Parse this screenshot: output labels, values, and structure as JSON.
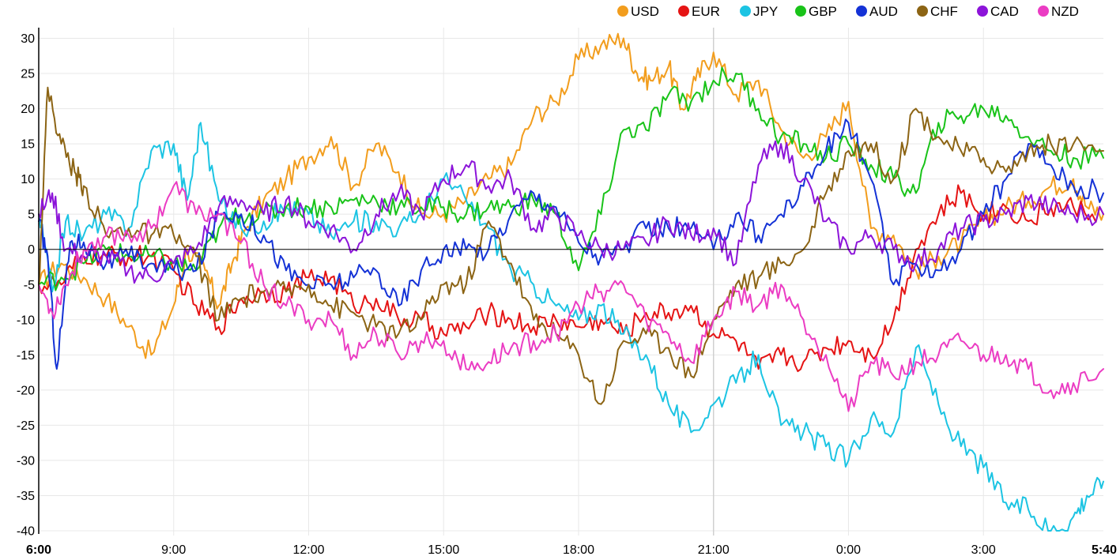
{
  "chart_data": {
    "type": "line",
    "title": "",
    "xlabel": "",
    "ylabel": "",
    "ylim": [
      -40,
      32
    ],
    "xlim_hours": [
      0,
      23.667
    ],
    "yticks": [
      30,
      25,
      20,
      15,
      10,
      5,
      0,
      -5,
      -10,
      -15,
      -20,
      -25,
      -30,
      -35,
      -40
    ],
    "xticks": [
      {
        "label": "6:00",
        "bold": true
      },
      {
        "label": "9:00",
        "bold": false
      },
      {
        "label": "12:00",
        "bold": false
      },
      {
        "label": "15:00",
        "bold": false
      },
      {
        "label": "18:00",
        "bold": false
      },
      {
        "label": "21:00",
        "bold": false
      },
      {
        "label": "0:00",
        "bold": false
      },
      {
        "label": "3:00",
        "bold": false
      },
      {
        "label": "5:40",
        "bold": true
      }
    ],
    "grid": true,
    "legend_position": "top-right",
    "series": [
      {
        "name": "USD",
        "color": "#f29d1d",
        "x": [
          0,
          0.5,
          1,
          1.5,
          2,
          2.5,
          3,
          3.3,
          3.7,
          4,
          4.3,
          4.6,
          5,
          5.5,
          6,
          6.5,
          7,
          7.5,
          8,
          8.5,
          9,
          9.5,
          10,
          10.5,
          11,
          11.5,
          12,
          12.5,
          13,
          13.3,
          13.6,
          14,
          14.3,
          14.6,
          15,
          15.5,
          16,
          16.5,
          17,
          17.5,
          18,
          18.5,
          19,
          19.5,
          20,
          20.5,
          21,
          21.5,
          22,
          22.5,
          23,
          23.3,
          23.667
        ],
        "y": [
          -5,
          -2,
          -4,
          -7,
          -11,
          -15,
          -8,
          0,
          -3,
          -8,
          -2,
          3,
          7,
          10,
          13,
          16,
          9,
          15,
          11,
          5,
          5,
          7,
          10,
          12,
          19,
          21,
          27,
          29,
          30,
          25,
          24,
          26,
          20,
          24,
          28,
          22,
          24,
          17,
          13,
          16,
          21,
          3,
          2,
          -3,
          -1,
          1,
          4,
          6,
          7,
          9,
          10,
          6,
          5
        ]
      },
      {
        "name": "EUR",
        "color": "#e51414",
        "x": [
          0,
          0.5,
          1,
          1.5,
          2,
          2.5,
          3,
          3.5,
          4,
          4.5,
          5,
          5.5,
          6,
          6.5,
          7,
          7.5,
          8,
          8.5,
          9,
          9.5,
          10,
          10.5,
          11,
          11.5,
          12,
          12.5,
          13,
          13.5,
          14,
          14.5,
          15,
          15.5,
          16,
          16.5,
          17,
          17.5,
          18,
          18.5,
          19,
          19.5,
          20,
          20.5,
          21,
          21.5,
          22,
          22.5,
          23,
          23.667
        ],
        "y": [
          -5,
          -5,
          -1,
          -1,
          -1,
          -1,
          -3,
          -8,
          -11,
          -7,
          -6,
          -6,
          -4,
          -4,
          -8,
          -7,
          -10,
          -10,
          -12,
          -11,
          -9,
          -10,
          -11,
          -10,
          -11,
          -10,
          -12,
          -9,
          -9,
          -8,
          -12,
          -13,
          -17,
          -15,
          -16,
          -14,
          -13,
          -15,
          -10,
          0,
          5,
          8,
          5,
          6,
          4,
          6,
          6,
          5
        ]
      },
      {
        "name": "JPY",
        "color": "#1cc4e3",
        "x": [
          0,
          0.3,
          0.6,
          1,
          1.5,
          2,
          2.5,
          3,
          3.3,
          3.6,
          4,
          4.5,
          5,
          5.5,
          6,
          6.5,
          7,
          7.5,
          8,
          8.5,
          9,
          9.5,
          10,
          10.5,
          11,
          11.5,
          12,
          12.5,
          13,
          13.5,
          14,
          14.5,
          15,
          15.5,
          16,
          16.5,
          17,
          17.5,
          18,
          18.5,
          19,
          19.5,
          20,
          20.5,
          21,
          21.5,
          22,
          22.5,
          23,
          23.3,
          23.667
        ],
        "y": [
          5,
          -6,
          4,
          2,
          5,
          3,
          14,
          15,
          7,
          18,
          7,
          3,
          4,
          6,
          5,
          2,
          4,
          4,
          3,
          5,
          10,
          7,
          3,
          -3,
          -5,
          -8,
          -10,
          -8,
          -12,
          -15,
          -22,
          -26,
          -22,
          -19,
          -15,
          -25,
          -26,
          -28,
          -30,
          -24,
          -26,
          -14,
          -22,
          -28,
          -31,
          -36,
          -37,
          -40,
          -38,
          -35,
          -33
        ]
      },
      {
        "name": "GBP",
        "color": "#19c319",
        "x": [
          0,
          0.5,
          1,
          1.5,
          2,
          2.5,
          3,
          3.5,
          4,
          4.5,
          5,
          5.5,
          6,
          6.5,
          7,
          7.5,
          8,
          8.5,
          9,
          9.5,
          10,
          10.5,
          11,
          11.5,
          12,
          12.5,
          13,
          13.5,
          14,
          14.5,
          15,
          15.5,
          16,
          16.5,
          17,
          17.5,
          18,
          18.5,
          19,
          19.5,
          20,
          20.5,
          21,
          21.5,
          22,
          22.5,
          23,
          23.667
        ],
        "y": [
          -5,
          -4,
          -2,
          0,
          -1,
          -1,
          -2,
          -3,
          3,
          5,
          5,
          6,
          6,
          6,
          7,
          7,
          6,
          6,
          6,
          5,
          6,
          6,
          7,
          5,
          -3,
          5,
          17,
          17,
          22,
          21,
          24,
          25,
          20,
          16,
          15,
          13,
          15,
          12,
          10,
          8,
          18,
          19,
          20,
          19,
          16,
          14,
          13,
          13
        ]
      },
      {
        "name": "AUD",
        "color": "#1432d6",
        "x": [
          0,
          0.2,
          0.4,
          0.7,
          1,
          1.5,
          2,
          2.5,
          3,
          3.5,
          4,
          4.5,
          5,
          5.5,
          6,
          6.5,
          7,
          7.5,
          8,
          8.5,
          9,
          9.5,
          10,
          10.5,
          11,
          11.5,
          12,
          12.5,
          13,
          13.5,
          14,
          14.5,
          15,
          15.5,
          16,
          16.5,
          17,
          17.5,
          18,
          18.5,
          19,
          19.5,
          20,
          20.5,
          21,
          21.5,
          22,
          22.5,
          23,
          23.667
        ],
        "y": [
          4,
          -1,
          -17,
          1,
          1,
          -2,
          -1,
          -2,
          -3,
          -3,
          5,
          5,
          2,
          -3,
          -5,
          -5,
          -4,
          -3,
          -8,
          -3,
          0,
          0,
          0,
          5,
          8,
          6,
          1,
          -1,
          0,
          3,
          3,
          3,
          0,
          5,
          2,
          5,
          9,
          14,
          18,
          10,
          -5,
          -2,
          -3,
          0,
          5,
          10,
          15,
          12,
          9,
          8
        ]
      },
      {
        "name": "CHF",
        "color": "#8c6414",
        "x": [
          0,
          0.2,
          0.5,
          0.8,
          1,
          1.5,
          2,
          2.5,
          3,
          3.5,
          4,
          4.5,
          5,
          5.5,
          6,
          6.5,
          7,
          7.5,
          8,
          8.5,
          9,
          9.5,
          10,
          10.5,
          11,
          11.5,
          12,
          12.5,
          13,
          13.5,
          14,
          14.5,
          15,
          15.5,
          16,
          16.5,
          17,
          17.5,
          18,
          18.5,
          19,
          19.5,
          20,
          20.5,
          21,
          21.5,
          22,
          22.5,
          23,
          23.667
        ],
        "y": [
          -5,
          23,
          15,
          11,
          9,
          2,
          3,
          2,
          2,
          -1,
          -10,
          -7,
          -6,
          -6,
          -5,
          -8,
          -9,
          -11,
          -12,
          -10,
          -5,
          -5,
          4,
          -2,
          -10,
          -12,
          -15,
          -22,
          -13,
          -12,
          -14,
          -18,
          -10,
          -5,
          -4,
          -2,
          0,
          8,
          14,
          15,
          10,
          20,
          16,
          14,
          13,
          11,
          14,
          15,
          15,
          14
        ]
      },
      {
        "name": "CAD",
        "color": "#8c14d9",
        "x": [
          0,
          0.3,
          0.6,
          1,
          1.5,
          2,
          2.5,
          3,
          3.5,
          4,
          4.5,
          5,
          5.5,
          6,
          6.5,
          7,
          7.5,
          8,
          8.5,
          9,
          9.5,
          10,
          10.5,
          11,
          11.5,
          12,
          12.5,
          13,
          13.5,
          14,
          14.5,
          15,
          15.5,
          16,
          16.5,
          17,
          17.5,
          18,
          18.5,
          19,
          19.5,
          20,
          20.5,
          21,
          21.5,
          22,
          22.5,
          23,
          23.667
        ],
        "y": [
          5,
          8,
          0,
          -1,
          -1,
          -3,
          -4,
          -2,
          0,
          6,
          7,
          5,
          7,
          4,
          3,
          0,
          5,
          8,
          5,
          10,
          12,
          9,
          10,
          3,
          5,
          2,
          0,
          0,
          1,
          4,
          2,
          3,
          -2,
          12,
          15,
          10,
          4,
          0,
          2,
          0,
          -2,
          0,
          3,
          4,
          5,
          7,
          6,
          5,
          5
        ]
      },
      {
        "name": "NZD",
        "color": "#eb3cc3",
        "x": [
          0,
          0.3,
          0.6,
          1,
          1.5,
          2,
          2.5,
          3,
          3.5,
          4,
          4.5,
          5,
          5.5,
          6,
          6.5,
          7,
          7.5,
          8,
          8.5,
          9,
          9.5,
          10,
          10.5,
          11,
          11.5,
          12,
          12.5,
          13,
          13.5,
          14,
          14.5,
          15,
          15.5,
          16,
          16.5,
          17,
          17.5,
          18,
          18.5,
          19,
          19.5,
          20,
          20.5,
          21,
          21.5,
          22,
          22.5,
          23,
          23.667
        ],
        "y": [
          -5,
          -9,
          -5,
          0,
          2,
          2,
          3,
          9,
          5,
          5,
          1,
          -5,
          -8,
          -10,
          -10,
          -15,
          -12,
          -15,
          -13,
          -13,
          -17,
          -16,
          -14,
          -13,
          -12,
          -8,
          -6,
          -5,
          -10,
          -12,
          -16,
          -10,
          -6,
          -8,
          -5,
          -10,
          -15,
          -23,
          -16,
          -18,
          -16,
          -15,
          -13,
          -15,
          -15,
          -17,
          -20,
          -19,
          -17
        ]
      }
    ]
  }
}
